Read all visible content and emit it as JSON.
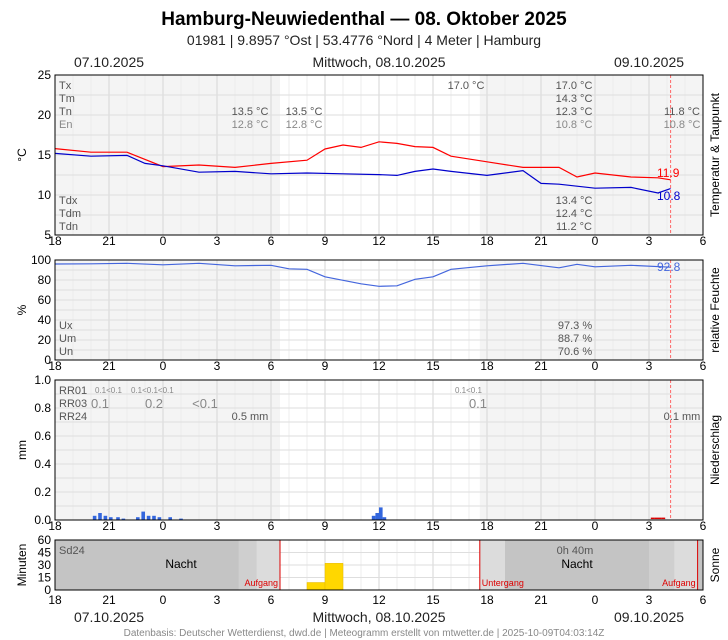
{
  "title": "Hamburg-Neuwiedenthal  —  08. Oktober 2025",
  "subtitle": "01981  |  9.8957 °Ost  |  53.4776 °Nord  |  4 Meter  |  Hamburg",
  "dates": {
    "left": "07.10.2025",
    "center": "Mittwoch, 08.10.2025",
    "right": "09.10.2025"
  },
  "footer": "Datenbasis: Deutscher Wetterdienst, dwd.de | Meteogramm erstellt von mtwetter.de | 2025-10-09T04:03:14Z",
  "x_axis": {
    "range_hours": [
      18,
      54
    ],
    "ticks": [
      18,
      21,
      24,
      27,
      30,
      33,
      36,
      39,
      42,
      45,
      48,
      51,
      54
    ],
    "tick_labels": [
      "18",
      "21",
      "0",
      "3",
      "6",
      "9",
      "12",
      "15",
      "18",
      "21",
      "0",
      "3",
      "6"
    ]
  },
  "chart_data": [
    {
      "type": "line",
      "title": "",
      "ylabel": "°C",
      "right_label": "Temperatur & Taupunkt",
      "ylim": [
        5,
        25
      ],
      "yticks": [
        "5",
        "10",
        "15",
        "20",
        "25"
      ],
      "grid": true,
      "series": [
        {
          "name": "",
          "color": "#ff0000",
          "x": [
            18,
            20,
            22,
            24,
            26,
            28,
            30,
            32,
            33,
            34,
            35,
            36,
            37,
            38,
            39,
            40,
            42,
            44,
            46,
            47,
            48,
            50,
            51.5,
            52.2
          ],
          "y": [
            15.8,
            15.5,
            15.2,
            13.7,
            13.6,
            13.6,
            13.8,
            14.5,
            15.6,
            16.4,
            15.8,
            16.8,
            16.3,
            16.2,
            15.8,
            15.0,
            14.0,
            13.6,
            13.3,
            12.4,
            12.6,
            12.4,
            12.0,
            11.9
          ]
        },
        {
          "name": "",
          "color": "#0000cc",
          "x": [
            18,
            20,
            22,
            23,
            24,
            26,
            28,
            30,
            32,
            34,
            36,
            37,
            38,
            39,
            40,
            42,
            44,
            45,
            46,
            48,
            50,
            51.5,
            52.2
          ],
          "y": [
            15.2,
            15.0,
            14.8,
            14.1,
            13.5,
            13.0,
            12.8,
            12.8,
            12.6,
            12.8,
            12.4,
            12.6,
            12.8,
            13.4,
            12.8,
            12.6,
            12.9,
            11.6,
            11.2,
            11.0,
            10.8,
            10.4,
            10.8
          ]
        }
      ],
      "end_labels": [
        "11.9",
        "10.8"
      ],
      "annotations_left": [
        "Tx",
        "Tm",
        "Tn",
        "En"
      ],
      "annotations_left_bottom": [
        "Tdx",
        "Tdm",
        "Tdn"
      ],
      "day_values": {
        "d1_tn": "13.5 °C",
        "d1_en": "12.8 °C",
        "d2_tn": "13.5 °C",
        "d2_en": "12.8 °C",
        "d3_tx": "17.0 °C",
        "d4_tx": "17.0 °C",
        "d4_tm": "14.3 °C",
        "d4_tn": "12.3 °C",
        "d4_en": "10.8 °C",
        "d5_tn": "11.8 °C",
        "d5_en": "10.8 °C",
        "d4_tdx": "13.4 °C",
        "d4_tdm": "12.4 °C",
        "d4_tdn": "11.2 °C"
      }
    },
    {
      "type": "line",
      "title": "",
      "ylabel": "%",
      "right_label": "relative Feuchte",
      "ylim": [
        0,
        100
      ],
      "yticks": [
        "0",
        "20",
        "40",
        "60",
        "80",
        "100"
      ],
      "grid": true,
      "series": [
        {
          "name": "",
          "color": "#4466dd",
          "x": [
            18,
            20,
            22,
            24,
            26,
            28,
            30,
            31,
            32,
            33,
            34,
            35,
            36,
            37,
            38,
            39,
            40,
            42,
            44,
            46,
            47,
            48,
            50,
            52.2
          ],
          "y": [
            96,
            97,
            96,
            96,
            96,
            95,
            94,
            92,
            90,
            84,
            79,
            77,
            73,
            75,
            80,
            84,
            90,
            95,
            96,
            93,
            95,
            94,
            94,
            92.8
          ]
        }
      ],
      "end_labels": [
        "92.8"
      ],
      "annotations_left": [
        "Ux",
        "Um",
        "Un"
      ],
      "day_values": {
        "ux": "97.3 %",
        "um": "88.7 %",
        "un": "70.6 %"
      }
    },
    {
      "type": "bar",
      "title": "",
      "ylabel": "mm",
      "right_label": "Niederschlag",
      "ylim": [
        0,
        1.0
      ],
      "yticks": [
        "0.0",
        "0.2",
        "0.4",
        "0.6",
        "0.8",
        "1.0"
      ],
      "grid": true,
      "annotations_left": [
        "RR01",
        "RR03",
        "RR24"
      ],
      "rr_labels": {
        "rr01_a": "0.1<0.1",
        "rr01_b": "0.1<0.1<0.1",
        "rr01_c": "0.1<0.1",
        "rr03_a": "0.1",
        "rr03_b": "0.2",
        "rr03_c": "<0.1",
        "rr03_d": "0.1",
        "rr24_a": "0.5 mm",
        "rr24_b": "0.1 mm"
      },
      "x": [
        20.2,
        20.5,
        20.8,
        21.1,
        21.5,
        21.8,
        22.6,
        22.9,
        23.2,
        23.5,
        23.8,
        24.4,
        25.0,
        35.7,
        35.9,
        36.1,
        36.3,
        51.2,
        51.4,
        51.6,
        51.8
      ],
      "values": [
        0.03,
        0.05,
        0.03,
        0.02,
        0.02,
        0.01,
        0.02,
        0.06,
        0.03,
        0.03,
        0.02,
        0.02,
        0.01,
        0.03,
        0.05,
        0.09,
        0.02,
        0.01,
        0.01,
        0.01,
        0.01
      ]
    },
    {
      "type": "bar",
      "title": "",
      "ylabel": "Minuten",
      "right_label": "Sonne",
      "ylim": [
        0,
        60
      ],
      "yticks": [
        "0",
        "15",
        "30",
        "45",
        "60"
      ],
      "grid": true,
      "x": [
        32.5,
        33.5
      ],
      "values": [
        9,
        32
      ],
      "nights": [
        {
          "from": 18,
          "to": 30.5,
          "label": "Nacht"
        },
        {
          "from": 41.6,
          "to": 54,
          "label": "Nacht"
        }
      ],
      "events": [
        {
          "hour": 30.5,
          "label": "Aufgang"
        },
        {
          "hour": 41.6,
          "label": "Untergang"
        },
        {
          "hour": 53.7,
          "label": "Aufgang"
        }
      ],
      "sd24_label": "Sd24",
      "sd24_value": "0h 40m"
    }
  ]
}
